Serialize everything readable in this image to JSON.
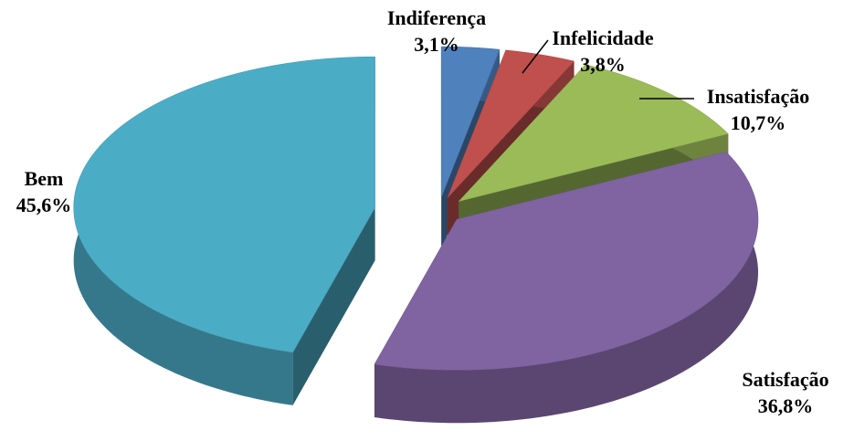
{
  "chart_data": {
    "type": "pie",
    "categories": [
      "Indiferença",
      "Infelicidade",
      "Insatisfação",
      "Satisfação",
      "Bem"
    ],
    "values": [
      3.1,
      3.8,
      10.7,
      36.8,
      45.6
    ],
    "value_labels": [
      "3,1%",
      "3,8%",
      "10,7%",
      "36,8%",
      "45,6%"
    ],
    "colors": [
      "#4f81bd",
      "#c0504d",
      "#9bbb59",
      "#8064a2",
      "#4bacc6"
    ]
  }
}
